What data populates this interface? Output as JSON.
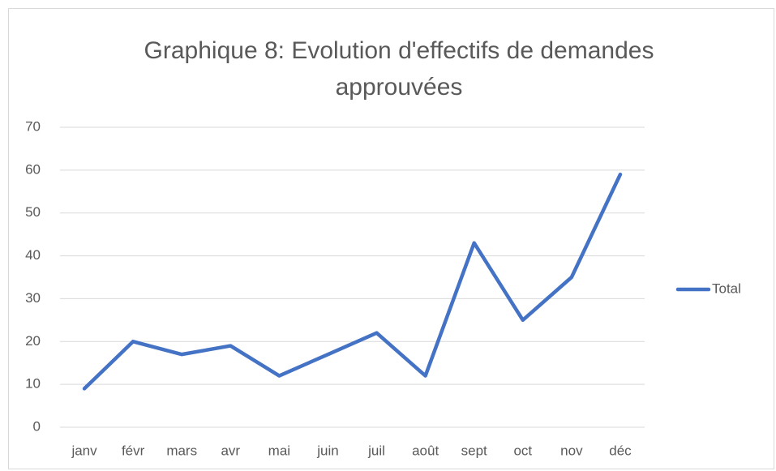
{
  "chart_data": {
    "type": "line",
    "title": "Graphique 8: Evolution d'effectifs de demandes approuvées",
    "categories": [
      "janv",
      "févr",
      "mars",
      "avr",
      "mai",
      "juin",
      "juil",
      "août",
      "sept",
      "oct",
      "nov",
      "déc"
    ],
    "series": [
      {
        "name": "Total",
        "color": "#4472c4",
        "values": [
          9,
          20,
          17,
          19,
          12,
          17,
          22,
          12,
          43,
          25,
          35,
          59
        ]
      }
    ],
    "ylim": [
      0,
      70
    ],
    "yticks": [
      0,
      10,
      20,
      30,
      40,
      50,
      60,
      70
    ],
    "grid": true,
    "legend": "right"
  }
}
